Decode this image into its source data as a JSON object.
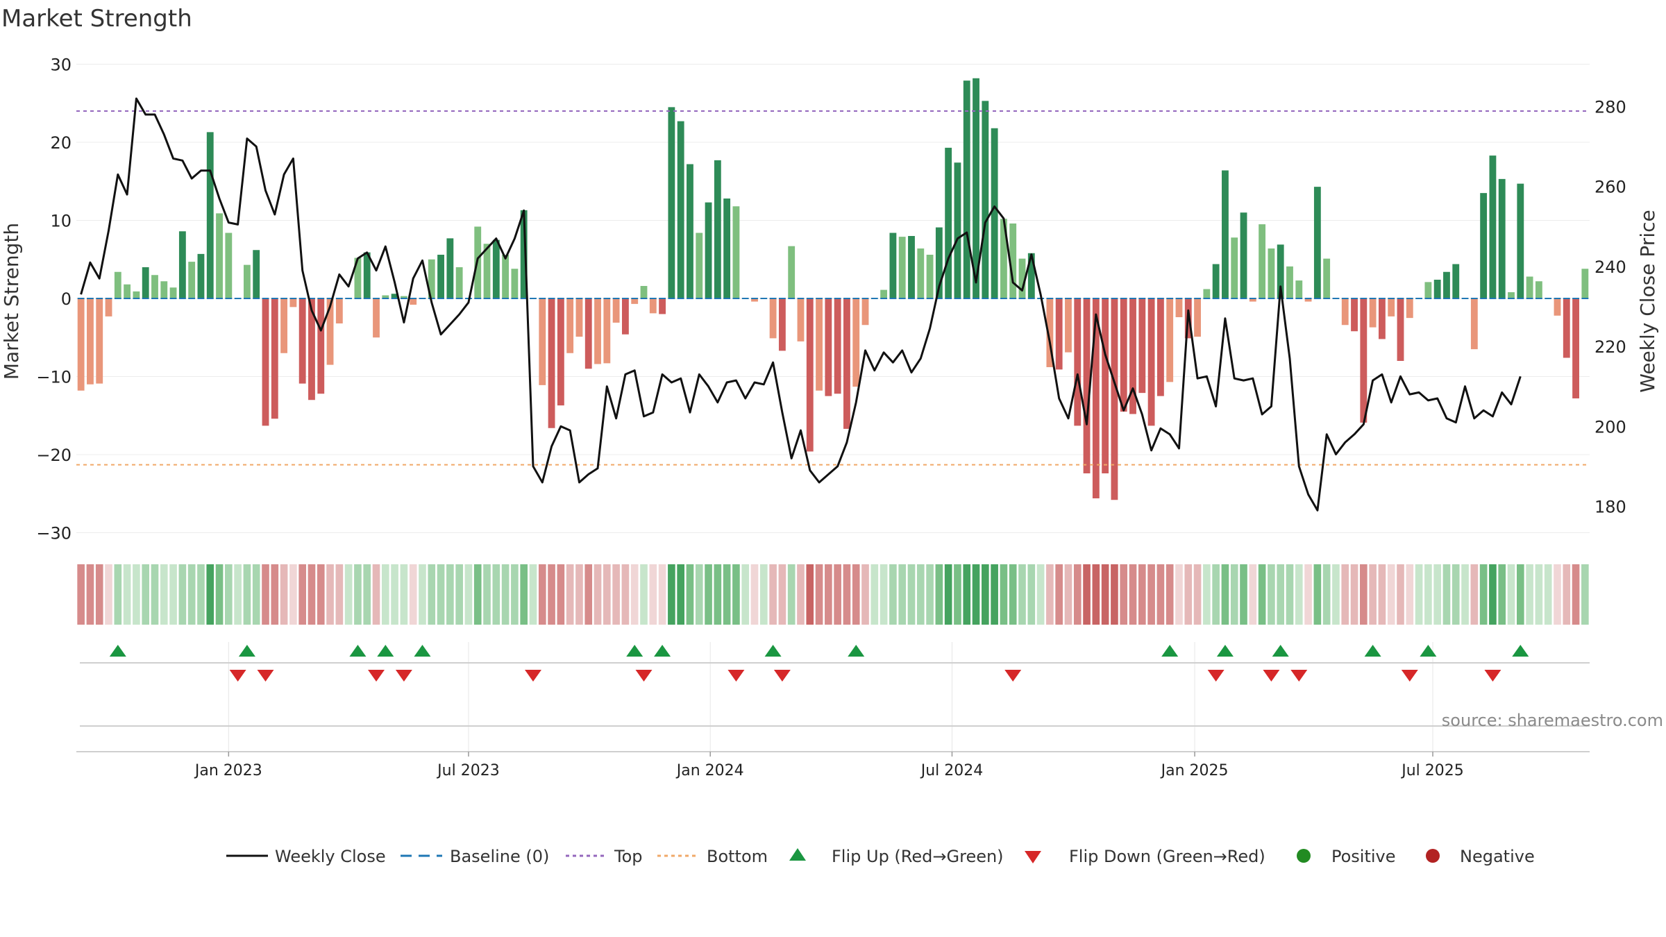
{
  "chart_data": {
    "type": "bar",
    "title": "Market Strength",
    "ylabel": "Market Strength",
    "y2label": "Weekly Close Price",
    "ylim": [
      -32,
      32
    ],
    "y2lim": [
      169.5,
      294.5
    ],
    "yticks": [
      30,
      20,
      10,
      0,
      -10,
      -20,
      -30
    ],
    "y2ticks": [
      280,
      260,
      240,
      220,
      200,
      180
    ],
    "top_line": 24,
    "bottom_line": -21.3,
    "xticks": [
      {
        "label": "Jan 2023",
        "week": 16.5
      },
      {
        "label": "Jul 2023",
        "week": 42.5
      },
      {
        "label": "Jan 2024",
        "week": 68.7
      },
      {
        "label": "Jul 2024",
        "week": 94.9
      },
      {
        "label": "Jan 2025",
        "week": 121.2
      },
      {
        "label": "Jul 2025",
        "week": 147
      }
    ],
    "source": "source: sharemaestro.com",
    "colors": {
      "pos_strong": "#2e8b57",
      "pos_weak": "#7fbf7f",
      "neg_strong": "#cd5c5c",
      "neg_weak": "#e9967a",
      "close": "#111111",
      "baseline": "#1f77b4",
      "top": "#9467bd",
      "bottom": "#f0a868",
      "flip_up": "#1a9641",
      "flip_down": "#d62728",
      "positive": "#228b22",
      "negative": "#b22222"
    },
    "series": [
      {
        "name": "Market Strength",
        "values": [
          -11.8,
          -11,
          -10.9,
          -2.3,
          3.4,
          1.8,
          0.9,
          4,
          3,
          2.2,
          1.4,
          8.6,
          4.7,
          5.7,
          21.3,
          10.9,
          8.4,
          0,
          4.3,
          6.2,
          -16.3,
          -15.4,
          -7,
          -1.1,
          -10.9,
          -13,
          -12.2,
          -8.5,
          -3.2,
          0,
          5.2,
          5.9,
          -5,
          0.4,
          0.6,
          0.3,
          -0.8,
          0,
          5,
          5.6,
          7.7,
          4,
          0,
          9.2,
          7,
          7.5,
          5.6,
          3.8,
          11.3,
          0,
          -11.1,
          -16.6,
          -13.7,
          -7,
          -4.9,
          -9,
          -8.4,
          -8.3,
          -3.1,
          -4.6,
          -0.7,
          1.6,
          -1.9,
          -2,
          24.5,
          22.7,
          17.2,
          8.4,
          12.3,
          17.7,
          12.8,
          11.8,
          0,
          -0.4,
          0,
          -5.1,
          -6.7,
          6.7,
          -5.5,
          -19.6,
          -11.8,
          -12.5,
          -12.2,
          -16.7,
          -11.3,
          -3.4,
          0,
          1.1,
          8.4,
          7.9,
          8,
          6.4,
          5.6,
          9.1,
          19.3,
          17.4,
          27.9,
          28.2,
          25.3,
          21.8,
          10.2,
          9.6,
          5.1,
          5.8,
          0,
          -8.8,
          -9.1,
          -6.9,
          -16.3,
          -22.4,
          -25.6,
          -22.4,
          -25.8,
          -14.5,
          -14.8,
          -12.1,
          -16.3,
          -12.5,
          -10.7,
          -2.4,
          -5.1,
          -4.9,
          1.2,
          4.4,
          16.4,
          7.8,
          11,
          -0.4,
          9.5,
          6.4,
          6.9,
          4.1,
          2.3,
          -0.4,
          14.3,
          5.1,
          0,
          -3.4,
          -4.2,
          -15.9,
          -3.7,
          -5.2,
          -2.3,
          -8,
          -2.5,
          0,
          2.1,
          2.4,
          3.4,
          4.4,
          0,
          -6.5,
          13.5,
          18.3,
          15.3,
          0.8,
          14.7,
          2.8,
          2.2,
          0,
          -2.2,
          -7.6,
          -12.8,
          3.8
        ]
      },
      {
        "name": "Weekly Close",
        "values": [
          233,
          241,
          237,
          249,
          263,
          258,
          282,
          278,
          278,
          273,
          267,
          266.5,
          262,
          264,
          264,
          257,
          251,
          250.5,
          272,
          270,
          259,
          253,
          263,
          267,
          239,
          229,
          224,
          230,
          238,
          235,
          242,
          243.5,
          239,
          245,
          236,
          226,
          237,
          241.5,
          231,
          223,
          225.5,
          228,
          231,
          242,
          244.5,
          247,
          242,
          247,
          254,
          190,
          186,
          195,
          200,
          199,
          186,
          188,
          189.5,
          210,
          202,
          213,
          214,
          202.5,
          203.5,
          213,
          211,
          212,
          203.5,
          213,
          210,
          206,
          211,
          211.5,
          207,
          211,
          210.5,
          216,
          203.5,
          192,
          199,
          189,
          186,
          188,
          190,
          196,
          206,
          219,
          214,
          218.5,
          216,
          219,
          213.5,
          217,
          224.5,
          235,
          242,
          247,
          248.5,
          236,
          251,
          255,
          252,
          236,
          234,
          243,
          233,
          221,
          207,
          202,
          213,
          200.5,
          228,
          218,
          211,
          204,
          209.5,
          203,
          194,
          199.5,
          198,
          194.5,
          229,
          212,
          212.5,
          205,
          227,
          212,
          211.5,
          212,
          203,
          205,
          235,
          217,
          190,
          183,
          179,
          198,
          193,
          196,
          198,
          200.5,
          211.5,
          213,
          206,
          212.5,
          208,
          208.5,
          206.5,
          207,
          202,
          201,
          210,
          202,
          204,
          202.5,
          208.5,
          205.5,
          212.5
        ]
      }
    ],
    "flip_up": [
      4,
      18,
      30,
      33,
      37,
      60,
      63,
      75,
      84,
      118,
      124,
      130,
      140,
      146,
      156
    ],
    "flip_down": [
      17,
      20,
      32,
      35,
      49,
      61,
      71,
      76,
      101,
      123,
      129,
      132,
      144,
      153
    ]
  },
  "legend": {
    "weekly_close": "Weekly Close",
    "baseline": "Baseline (0)",
    "top": "Top",
    "bottom": "Bottom",
    "flip_up": "Flip Up (Red→Green)",
    "flip_down": "Flip Down (Green→Red)",
    "positive": "Positive",
    "negative": "Negative"
  }
}
